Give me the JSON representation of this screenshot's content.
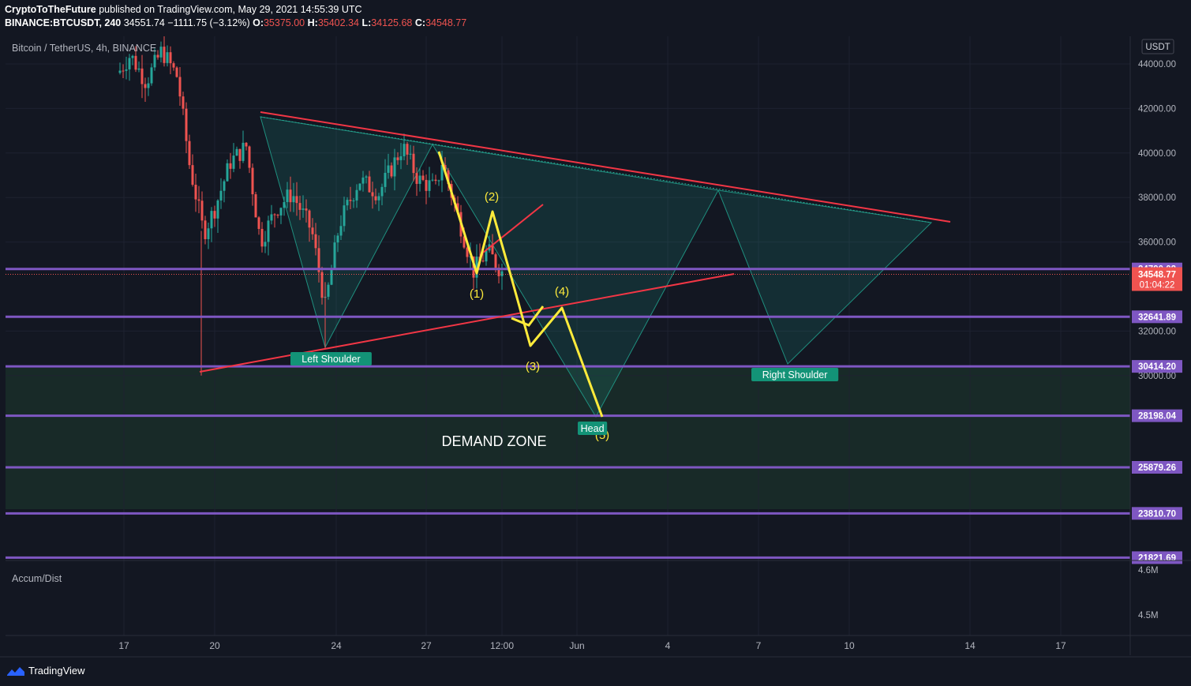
{
  "header": {
    "author": "CryptoToTheFuture",
    "published_text": "published on TradingView.com, May 29, 2021 14:55:39 UTC",
    "symbol": "BINANCE:BTCUSDT, 240",
    "last": "34551.74",
    "change": "−1111.75 (−3.12%)",
    "open_label": "O:",
    "open": "35375.00",
    "high_label": "H:",
    "high": "35402.34",
    "low_label": "L:",
    "low": "34125.68",
    "close_label": "C:",
    "close": "34548.77"
  },
  "pane_title": "Bitcoin / TetherUS, 4h, BINANCE",
  "currency_label": "USDT",
  "indicator_label": "Accum/Dist",
  "indicator_ticks": [
    "4.6M",
    "4.5M"
  ],
  "countdown": "01:04:22",
  "brand": "TradingView",
  "colors": {
    "background": "#131722",
    "up": "#26a69a",
    "down": "#ef5350",
    "level": "#7e57c2",
    "trend": "#f23645",
    "wave": "#ffeb3b",
    "pattern": "#22ab94"
  },
  "chart_data": {
    "type": "candlestick",
    "interval": "4h",
    "ylim": [
      20600,
      45600
    ],
    "x_ticks": [
      "17",
      "20",
      "24",
      "27",
      "12:00",
      "Jun",
      "4",
      "7",
      "10",
      "14",
      "17"
    ],
    "y_ticks": [
      "44000.00",
      "42000.00",
      "40000.00",
      "38000.00",
      "36000.00",
      "32000.00",
      "30000.00"
    ],
    "horizontal_levels": [
      "34790.02",
      "32641.89",
      "30414.20",
      "28198.04",
      "25879.26",
      "23810.70",
      "21821.69"
    ],
    "current_price": "34548.77",
    "annotations": {
      "demand_zone": "DEMAND ZONE",
      "left_shoulder": "Left Shoulder",
      "head": "Head",
      "right_shoulder": "Right Shoulder",
      "waves": [
        "(1)",
        "(2)",
        "(3)",
        "(4)",
        "(5)"
      ]
    }
  }
}
